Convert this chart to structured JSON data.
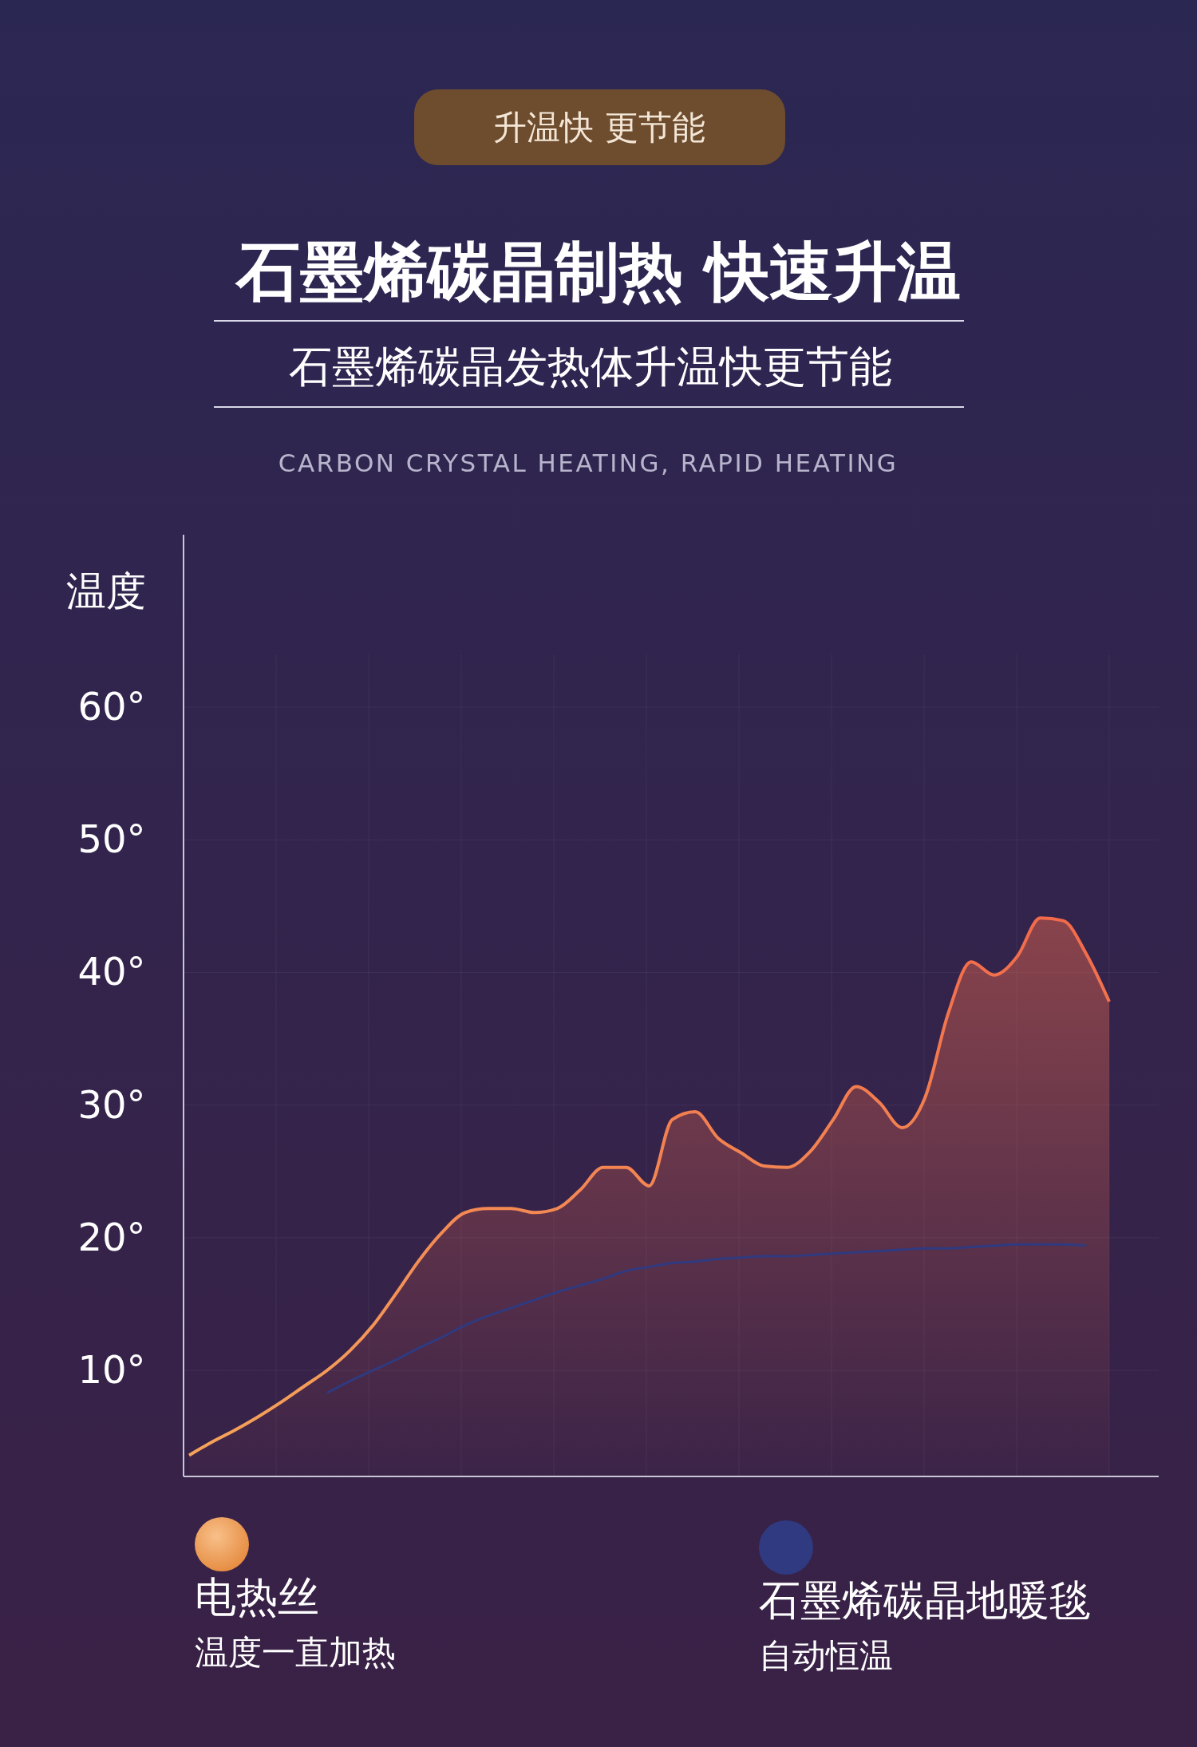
{
  "chart_data": {
    "type": "line",
    "title": "石墨烯碳晶制热 快速升温",
    "subtitle": "石墨烯碳晶发热体升温快更节能",
    "ylabel": "温度",
    "annotations": [
      "升温快 更节能",
      "CARBON CRYSTAL HEATING, RAPID HEATING",
      "温度一直加热",
      "自动恒温"
    ],
    "categories": [
      null,
      null,
      null,
      null,
      null,
      null,
      null,
      null,
      null,
      null,
      null,
      null,
      null,
      null,
      null,
      null,
      null,
      null,
      null,
      null,
      null,
      null,
      null,
      null,
      null,
      null,
      null,
      null,
      null,
      null,
      null,
      null,
      null,
      null,
      null,
      null,
      null,
      null,
      null,
      null,
      null
    ],
    "series": [
      {
        "name": "电热丝",
        "type": "area",
        "color": "#f26a4a",
        "values": [
          3.6,
          4.6,
          5.5,
          6.5,
          7.6,
          8.8,
          10.0,
          11.5,
          13.4,
          15.8,
          18.3,
          20.4,
          21.9,
          22.2,
          22.2,
          21.9,
          22.2,
          23.6,
          25.3,
          25.3,
          23.9,
          28.9,
          29.5,
          27.5,
          26.4,
          25.4,
          25.3,
          26.5,
          28.9,
          31.4,
          30.2,
          28.3,
          30.6,
          36.9,
          40.8,
          39.8,
          41.2,
          44.1,
          43.9,
          41.4,
          37.8
        ]
      },
      {
        "name": "石墨烯碳晶地暖毯",
        "color": "#2f3a80",
        "values": [
          null,
          null,
          null,
          null,
          null,
          null,
          8.3,
          9.2,
          10.0,
          10.8,
          11.7,
          12.5,
          13.4,
          14.1,
          14.7,
          15.3,
          15.9,
          16.4,
          16.9,
          17.5,
          17.8,
          18.1,
          18.2,
          18.4,
          18.5,
          18.6,
          18.6,
          18.7,
          18.8,
          18.9,
          19.0,
          19.1,
          19.2,
          19.2,
          19.3,
          19.4,
          19.5,
          19.5,
          19.5,
          19.4,
          null
        ]
      }
    ],
    "ylim": [
      2,
      73
    ],
    "yticks": [
      {
        "value": 10,
        "label": "10°"
      },
      {
        "value": 20,
        "label": "20°"
      },
      {
        "value": 30,
        "label": "30°"
      },
      {
        "value": 40,
        "label": "40°"
      },
      {
        "value": 50,
        "label": "50°"
      },
      {
        "value": 60,
        "label": "60°"
      }
    ],
    "grid": true,
    "legend": "bottom",
    "marker": "none",
    "line_style": "solid"
  }
}
